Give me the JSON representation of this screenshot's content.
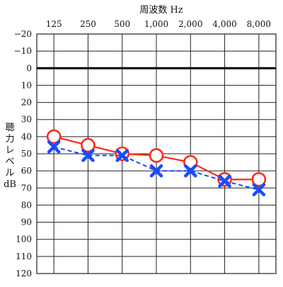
{
  "chart_data": {
    "type": "line",
    "title": "",
    "xlabel": "周波数 Hz",
    "ylabel_chars": [
      "聴",
      "力",
      "レ",
      "ベ",
      "ル",
      "dB"
    ],
    "x_scale": "categorical-log2",
    "categories": [
      "125",
      "250",
      "500",
      "1,000",
      "2,000",
      "4,000",
      "8,000"
    ],
    "y_tick_labels": [
      "−20",
      "−10",
      "0",
      "10",
      "20",
      "30",
      "40",
      "50",
      "60",
      "70",
      "80",
      "90",
      "100",
      "110",
      "120"
    ],
    "y_ticks": [
      -20,
      -10,
      0,
      10,
      20,
      30,
      40,
      50,
      60,
      70,
      80,
      90,
      100,
      110,
      120
    ],
    "ylim": [
      -20,
      120
    ],
    "y_inverted": true,
    "grid": true,
    "reference_line": 0,
    "series": [
      {
        "marker": "circle",
        "line_style": "solid",
        "color": "#ff2a1a",
        "values": [
          40,
          45,
          50,
          51,
          55,
          65,
          65
        ]
      },
      {
        "marker": "cross",
        "line_style": "dashed",
        "color": "#1a4bff",
        "values": [
          46,
          51,
          51,
          60,
          60,
          66,
          71
        ]
      }
    ]
  }
}
